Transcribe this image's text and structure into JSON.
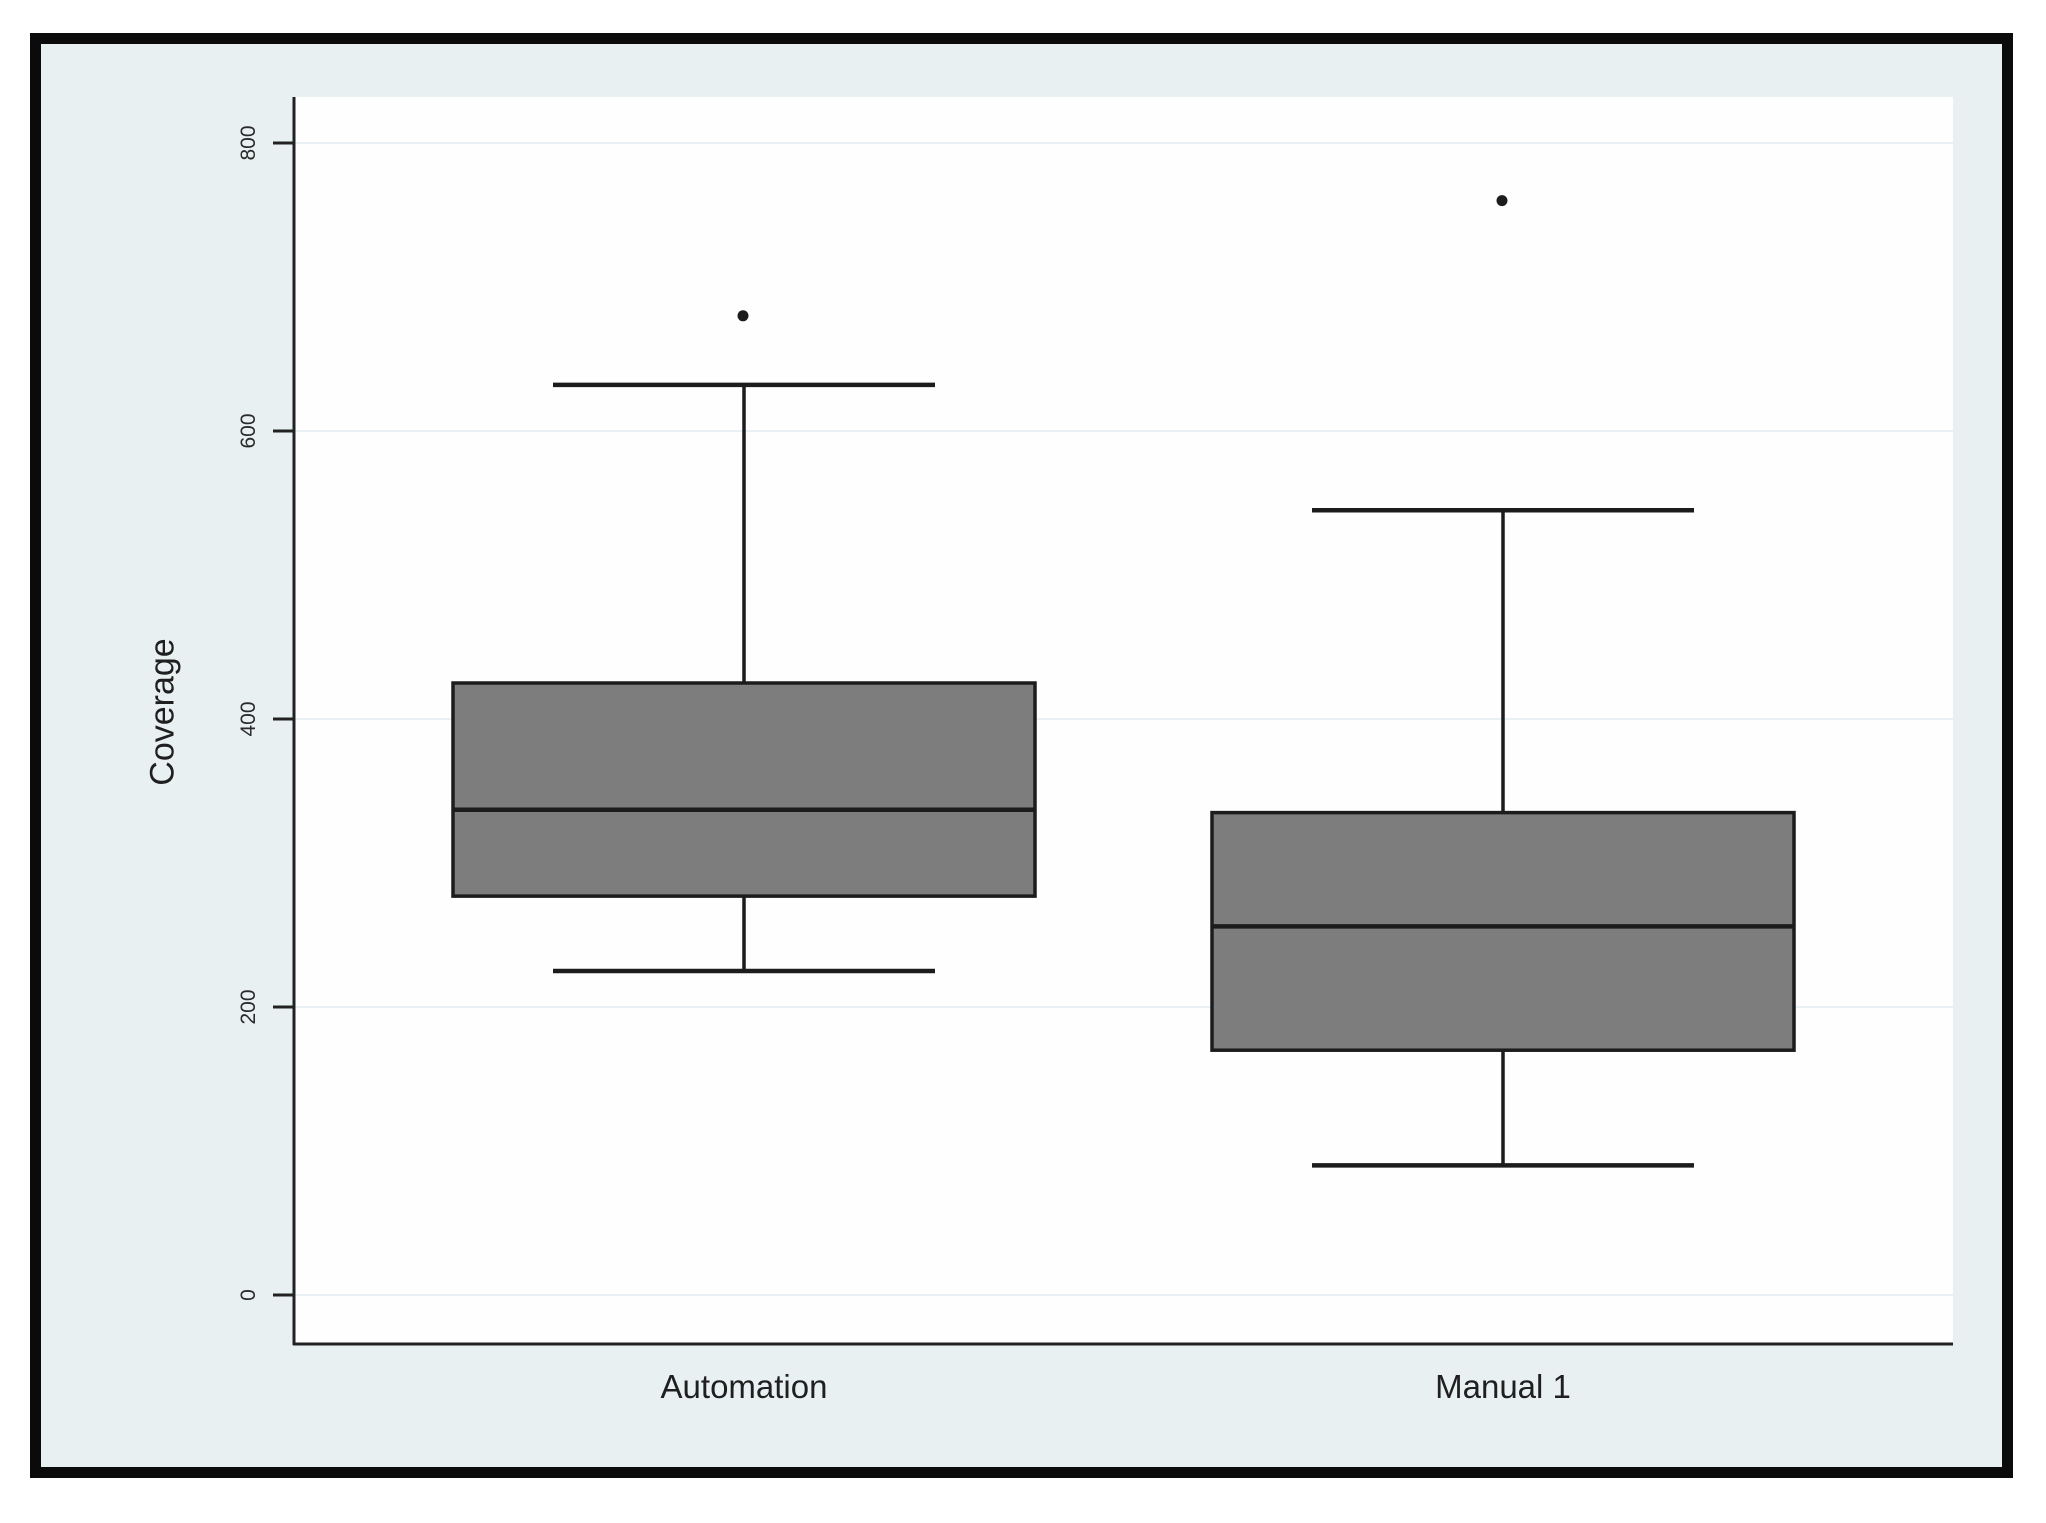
{
  "chart_data": {
    "type": "boxplot",
    "title": "",
    "ylabel": "Coverage",
    "xlabel": "",
    "categories": [
      "Automation",
      "Manual 1"
    ],
    "y_ticks": [
      0,
      200,
      400,
      600,
      800
    ],
    "y_tick_labels": [
      "0",
      "200",
      "400",
      "600",
      "800"
    ],
    "ylim": [
      -35,
      832
    ],
    "grid": true,
    "legend": "none",
    "series": [
      {
        "name": "Automation",
        "whisker_low": 225,
        "q1": 277,
        "median": 337,
        "q3": 425,
        "whisker_high": 632,
        "outliers": [
          680
        ]
      },
      {
        "name": "Manual 1",
        "whisker_low": 90,
        "q1": 170,
        "median": 256,
        "q3": 335,
        "whisker_high": 545,
        "outliers": [
          760
        ]
      }
    ]
  },
  "colors": {
    "frame_border": "#0b0b0b",
    "frame_background": "#e8f0f2",
    "plot_background": "#fefeff",
    "gridline": "#eaf1f4",
    "axis": "#222222",
    "box_fill": "#7d7d7d",
    "line": "#1c1c1c",
    "text": "#1f1f1f"
  }
}
